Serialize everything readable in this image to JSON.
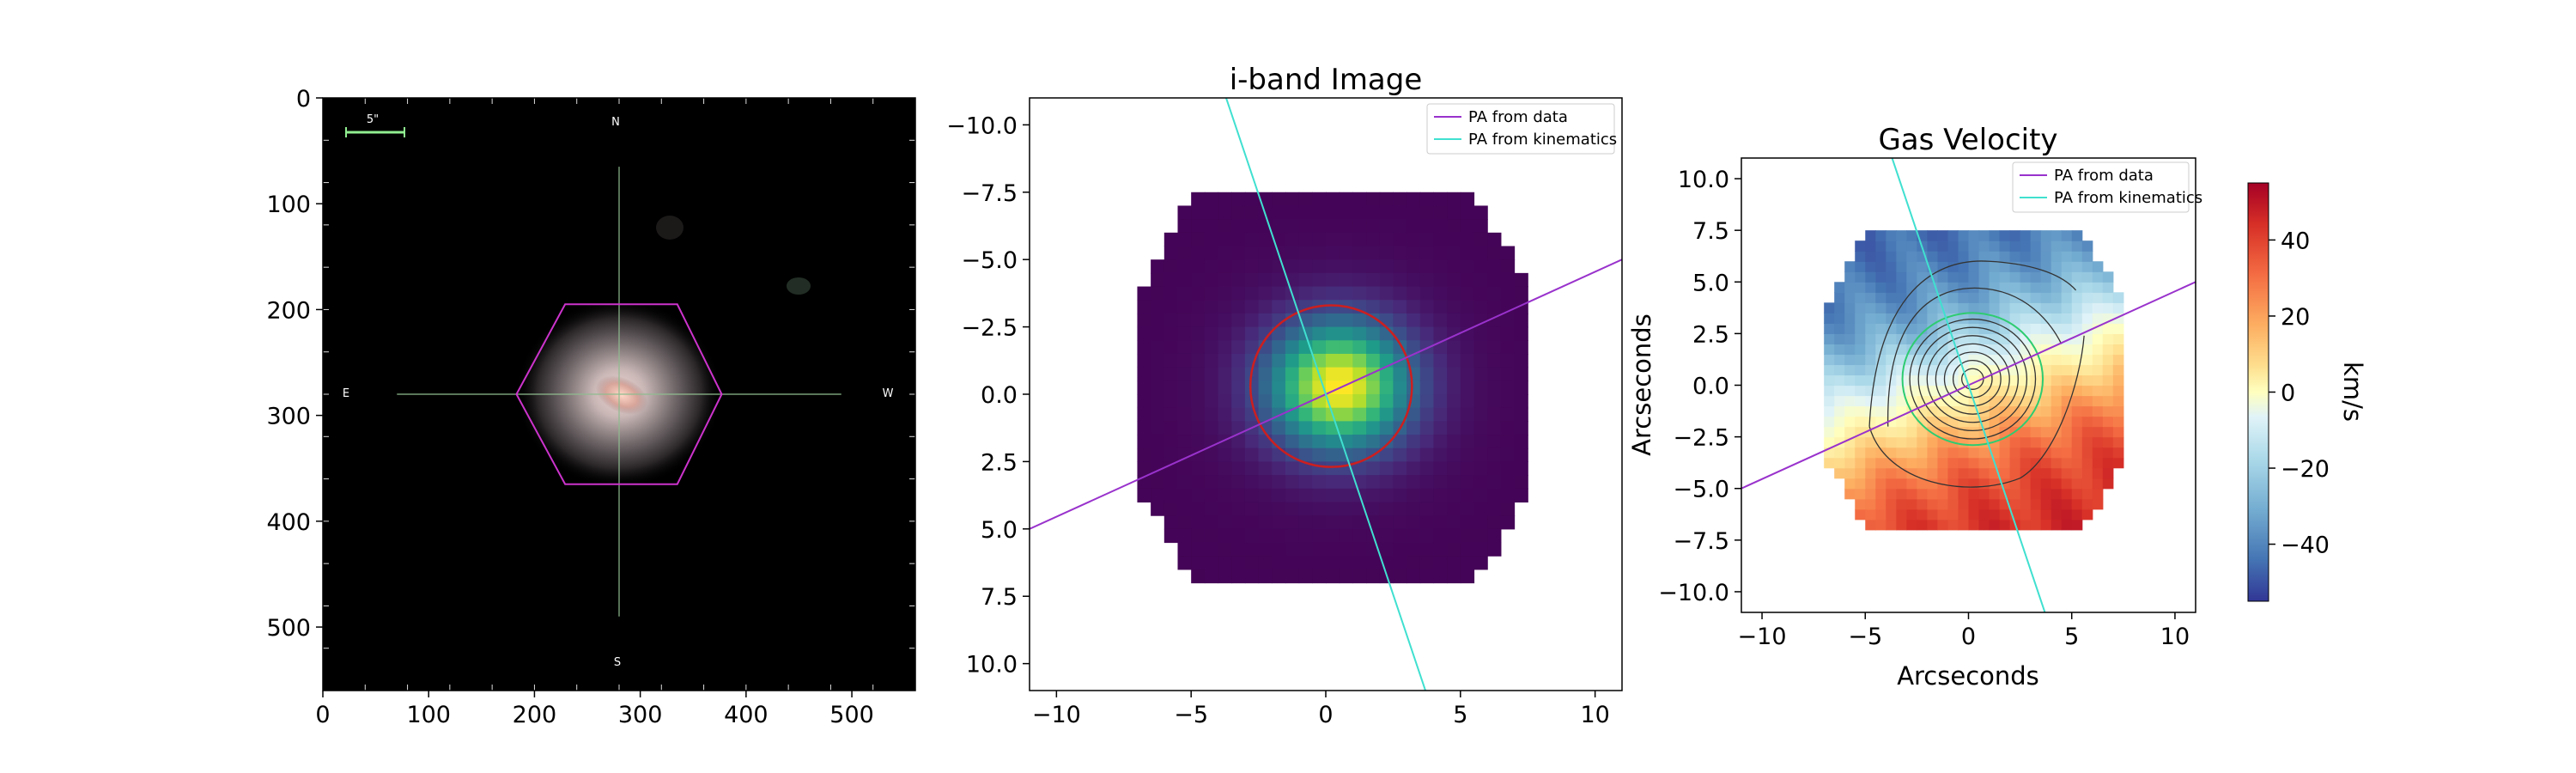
{
  "chart_data": [
    {
      "type": "image",
      "panel": "galaxy-rgb-image",
      "title": "",
      "xlim": [
        0,
        560
      ],
      "ylim": [
        560,
        0
      ],
      "x_ticks": [
        0,
        100,
        200,
        300,
        400,
        500
      ],
      "y_ticks": [
        0,
        100,
        200,
        300,
        400,
        500
      ],
      "scale_bar_label": "5\"",
      "compass": {
        "north": "N",
        "south": "S",
        "east": "E",
        "west": "W"
      },
      "hexagon_center": [
        280,
        280
      ],
      "hexagon_vertices": [
        [
          183,
          280
        ],
        [
          229,
          195
        ],
        [
          335,
          195
        ],
        [
          377,
          280
        ],
        [
          335,
          365
        ],
        [
          229,
          365
        ]
      ],
      "crosshair": {
        "x_from": 70,
        "x_to": 490,
        "y_from": 65,
        "y_to": 490
      },
      "colors": {
        "background": "#000000",
        "hexagon": "#cc33cc",
        "crosshair": "#8fbc8f",
        "scale_bar": "#90ee90"
      }
    },
    {
      "type": "heatmap",
      "panel": "i-band-image",
      "title": "i-band Image",
      "xlabel": "",
      "ylabel": "",
      "xlim": [
        -11,
        11
      ],
      "ylim": [
        11,
        -11
      ],
      "x_ticks": [
        -10,
        -5,
        0,
        5,
        10
      ],
      "y_ticks": [
        -10.0,
        -7.5,
        -5.0,
        -2.5,
        0.0,
        2.5,
        5.0,
        7.5,
        10.0
      ],
      "colormap": "viridis",
      "center": [
        0.5,
        -0.3
      ],
      "circle": {
        "center": [
          0.2,
          -0.3
        ],
        "radius": 3.0,
        "color": "#cc1f1f"
      },
      "series": [
        {
          "name": "PA from data",
          "color": "#9932cc",
          "points": [
            [
              -11,
              5.0
            ],
            [
              11,
              -5.0
            ]
          ]
        },
        {
          "name": "PA from kinematics",
          "color": "#40e0d0",
          "points": [
            [
              -3.7,
              -11
            ],
            [
              3.7,
              11
            ]
          ]
        }
      ],
      "legend": "top-right"
    },
    {
      "type": "heatmap",
      "panel": "gas-velocity",
      "title": "Gas Velocity",
      "xlabel": "Arcseconds",
      "ylabel": "Arcseconds",
      "xlim": [
        -11,
        11
      ],
      "ylim": [
        -11,
        11
      ],
      "x_ticks": [
        -10,
        -5,
        0,
        5,
        10
      ],
      "y_ticks": [
        10.0,
        7.5,
        5.0,
        2.5,
        0.0,
        -2.5,
        -5.0,
        -7.5,
        -10.0
      ],
      "colormap": "RdYlBu_r",
      "colorbar": {
        "label": "km/s",
        "range": [
          -55,
          55
        ],
        "ticks": [
          40,
          20,
          0,
          -20,
          -40
        ]
      },
      "velocity_gradient": "blue (negative) at top-left to red (positive) at bottom-right",
      "series": [
        {
          "name": "PA from data",
          "color": "#9932cc",
          "points": [
            [
              -11,
              -5.0
            ],
            [
              11,
              5.0
            ]
          ]
        },
        {
          "name": "PA from kinematics",
          "color": "#40e0d0",
          "points": [
            [
              -3.7,
              11
            ],
            [
              3.7,
              -11
            ]
          ]
        }
      ],
      "contour_center": [
        0.2,
        0.3
      ],
      "legend": "top-right"
    }
  ]
}
